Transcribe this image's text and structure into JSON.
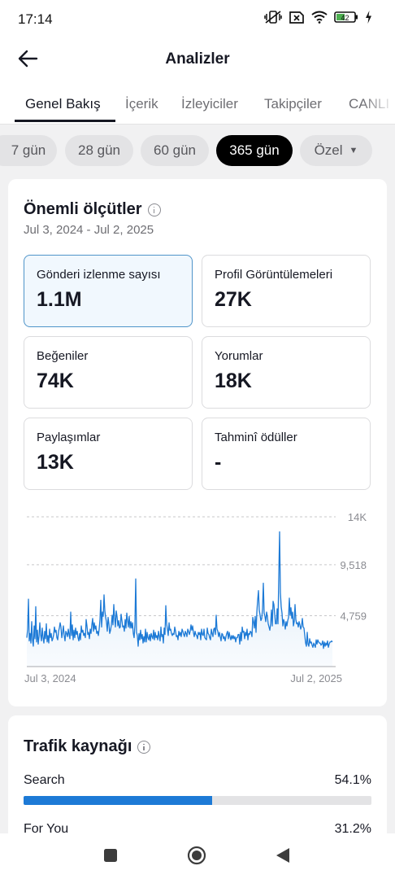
{
  "status_bar": {
    "time": "17:14",
    "battery_level": "42",
    "icons": [
      "vibrate-off-icon",
      "no-sim-icon",
      "wifi-icon",
      "battery-icon",
      "charging-icon"
    ]
  },
  "header": {
    "title": "Analizler",
    "back_icon": "arrow-left-icon"
  },
  "tabs": [
    {
      "label": "Genel Bakış",
      "active": true
    },
    {
      "label": "İçerik"
    },
    {
      "label": "İzleyiciler"
    },
    {
      "label": "Takipçiler"
    },
    {
      "label": "CANLI"
    }
  ],
  "ranges": [
    {
      "label": "7 gün"
    },
    {
      "label": "28 gün"
    },
    {
      "label": "60 gün"
    },
    {
      "label": "365 gün",
      "active": true
    },
    {
      "label": "Özel",
      "dropdown": true
    }
  ],
  "metrics_card": {
    "title": "Önemli ölçütler",
    "date_range": "Jul 3, 2024 - Jul 2, 2025",
    "metrics": [
      {
        "label": "Gönderi izlenme sayısı",
        "value": "1.1M",
        "selected": true
      },
      {
        "label": "Profil Görüntülemeleri",
        "value": "27K"
      },
      {
        "label": "Beğeniler",
        "value": "74K"
      },
      {
        "label": "Yorumlar",
        "value": "18K"
      },
      {
        "label": "Paylaşımlar",
        "value": "13K"
      },
      {
        "label": "Tahminî ödüller",
        "value": "-"
      }
    ]
  },
  "chart_data": {
    "type": "area",
    "x_start": "Jul 3, 2024",
    "x_end": "Jul 2, 2025",
    "ylim": [
      0,
      14000
    ],
    "y_ticks": [
      {
        "value": 14000,
        "label": "14K"
      },
      {
        "value": 9518,
        "label": "9,518"
      },
      {
        "value": 4759,
        "label": "4,759"
      }
    ],
    "grid": true,
    "color": "#1d7ad6",
    "values": [
      2700,
      3500,
      6300,
      2400,
      3100,
      2200,
      4200,
      2500,
      1900,
      3800,
      2600,
      5600,
      2300,
      3400,
      2100,
      2800,
      4100,
      3000,
      2400,
      3600,
      2700,
      2200,
      3300,
      2600,
      4000,
      2300,
      2900,
      2200,
      3500,
      2700,
      3100,
      2400,
      2600,
      3000,
      3700,
      3200,
      3400,
      2700,
      2500,
      3300,
      3600,
      4100,
      3700,
      2700,
      3200,
      3800,
      2900,
      2400,
      3300,
      3100,
      2800,
      3500,
      3000,
      2600,
      5100,
      2900,
      3900,
      2500,
      3400,
      2700,
      3600,
      3000,
      3300,
      2700,
      2400,
      3100,
      2500,
      3800,
      3200,
      3400,
      2900,
      3100,
      2700,
      4400,
      3800,
      3000,
      3200,
      2600,
      3500,
      3100,
      3900,
      4500,
      3300,
      4100,
      3500,
      3800,
      3100,
      3300,
      2900,
      3500,
      4400,
      6200,
      3700,
      5100,
      4700,
      6700,
      5200,
      4600,
      4200,
      3300,
      4600,
      4000,
      3100,
      3400,
      3900,
      4800,
      3900,
      5800,
      4600,
      3700,
      5200,
      4700,
      3800,
      4300,
      3600,
      3700,
      4900,
      4300,
      3700,
      3800,
      3300,
      4400,
      3600,
      5000,
      4300,
      3700,
      4700,
      3600,
      4200,
      3600,
      4100,
      3100,
      2700,
      3900,
      8200,
      3200,
      2900,
      1900,
      3100,
      2500,
      3400,
      2600,
      3000,
      2200,
      2800,
      2300,
      3500,
      2300,
      3200,
      2700,
      2500,
      3000,
      2400,
      3100,
      2800,
      2600,
      3400,
      2500,
      3200,
      2700,
      2900,
      2500,
      3300,
      2800,
      2400,
      3700,
      2800,
      3000,
      2200,
      3600,
      3000,
      5700,
      4000,
      3500,
      2900,
      4100,
      3400,
      3500,
      3100,
      2900,
      3100,
      3000,
      3700,
      3300,
      2800,
      2900,
      2500,
      3300,
      2900,
      3200,
      2800,
      3500,
      3300,
      3000,
      2800,
      3300,
      3100,
      2800,
      3500,
      3300,
      3000,
      3300,
      3900,
      3400,
      3800,
      3200,
      2800,
      3300,
      3000,
      2900,
      2600,
      3200,
      3000,
      3200,
      2500,
      3500,
      3000,
      2900,
      3500,
      2700,
      2600,
      2500,
      3600,
      3100,
      3000,
      2700,
      2500,
      3500,
      3100,
      2800,
      3500,
      3600,
      3000,
      4800,
      3500,
      3300,
      2800,
      3200,
      2800,
      2400,
      3100,
      3000,
      2600,
      2800,
      2400,
      2800,
      3100,
      3300,
      2600,
      3200,
      2800,
      2500,
      2900,
      2600,
      2900,
      2600,
      2800,
      2300,
      2700,
      2700,
      3000,
      3000,
      2100,
      3200,
      2400,
      3700,
      3200,
      3300,
      2600,
      3200,
      2900,
      3500,
      2500,
      3100,
      3000,
      3300,
      3200,
      2800,
      4600,
      4200,
      3600,
      4700,
      3200,
      5100,
      6200,
      7100,
      5300,
      4800,
      4300,
      4500,
      5400,
      7800,
      5000,
      4700,
      4200,
      5100,
      4700,
      4000,
      3700,
      3400,
      4000,
      5300,
      3800,
      6100,
      5800,
      4900,
      4000,
      4000,
      5400,
      4000,
      8400,
      12600,
      6900,
      5600,
      5000,
      3800,
      4400,
      4100,
      3500,
      4200,
      3800,
      4300,
      4600,
      6400,
      4800,
      5500,
      4500,
      5100,
      3800,
      4200,
      5800,
      4400,
      4000,
      4100,
      3700,
      4200,
      3900,
      3500,
      3800,
      4500,
      3700,
      3600,
      2900,
      2200,
      1900,
      3200,
      2100,
      1900,
      2600,
      2200,
      2300,
      2000,
      1800,
      2200,
      2000,
      1800,
      2500,
      2100,
      2500,
      2300,
      2200,
      2200,
      2000,
      2100,
      2400,
      1700,
      2300,
      1900,
      2200,
      2000,
      2400,
      1800,
      2100,
      2300,
      2300,
      2400,
      2300
    ]
  },
  "traffic_card": {
    "title": "Trafik kaynağı",
    "sources": [
      {
        "name": "Search",
        "pct_label": "54.1%",
        "pct": 54.1
      },
      {
        "name": "For You",
        "pct_label": "31.2%",
        "pct": 31.2
      }
    ]
  },
  "nav": {
    "icons": [
      "recents-square-icon",
      "home-circle-icon",
      "back-triangle-icon"
    ]
  }
}
